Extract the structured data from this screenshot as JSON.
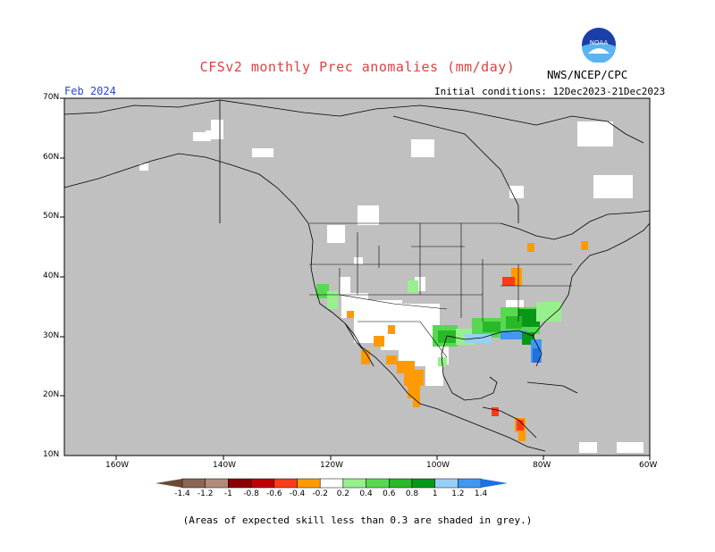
{
  "title": "CFSv2 monthly Prec anomalies (mm/day)",
  "agency": "NWS/NCEP/CPC",
  "logo_text": "NOAA",
  "period": "Feb 2024",
  "initial_conditions": "Initial conditions: 12Dec2023-21Dec2023",
  "footnote": "(Areas of expected skill less than 0.3 are shaded in grey.)",
  "map": {
    "lon_range": [
      -170,
      -60
    ],
    "lat_range": [
      10,
      70
    ],
    "lon_ticks": [
      "160W",
      "140W",
      "120W",
      "100W",
      "80W",
      "60W"
    ],
    "lat_ticks": [
      "70N",
      "60N",
      "50N",
      "40N",
      "30N",
      "20N",
      "10N"
    ],
    "mask_color": "#c0c0c0",
    "land_outline_color": "#000000"
  },
  "colorbar": {
    "labels": [
      "-1.4",
      "-1.2",
      "-1",
      "-0.8",
      "-0.6",
      "-0.4",
      "-0.2",
      "0.2",
      "0.4",
      "0.6",
      "0.8",
      "1",
      "1.2",
      "1.4"
    ],
    "colors": [
      "#6b4a3a",
      "#8c6654",
      "#b08a7a",
      "#8b0000",
      "#c00000",
      "#ff3a1a",
      "#ff9a00",
      "#ffffff",
      "#98f08c",
      "#58d850",
      "#28b828",
      "#089818",
      "#98cff8",
      "#4098f0",
      "#2070e0"
    ]
  }
}
